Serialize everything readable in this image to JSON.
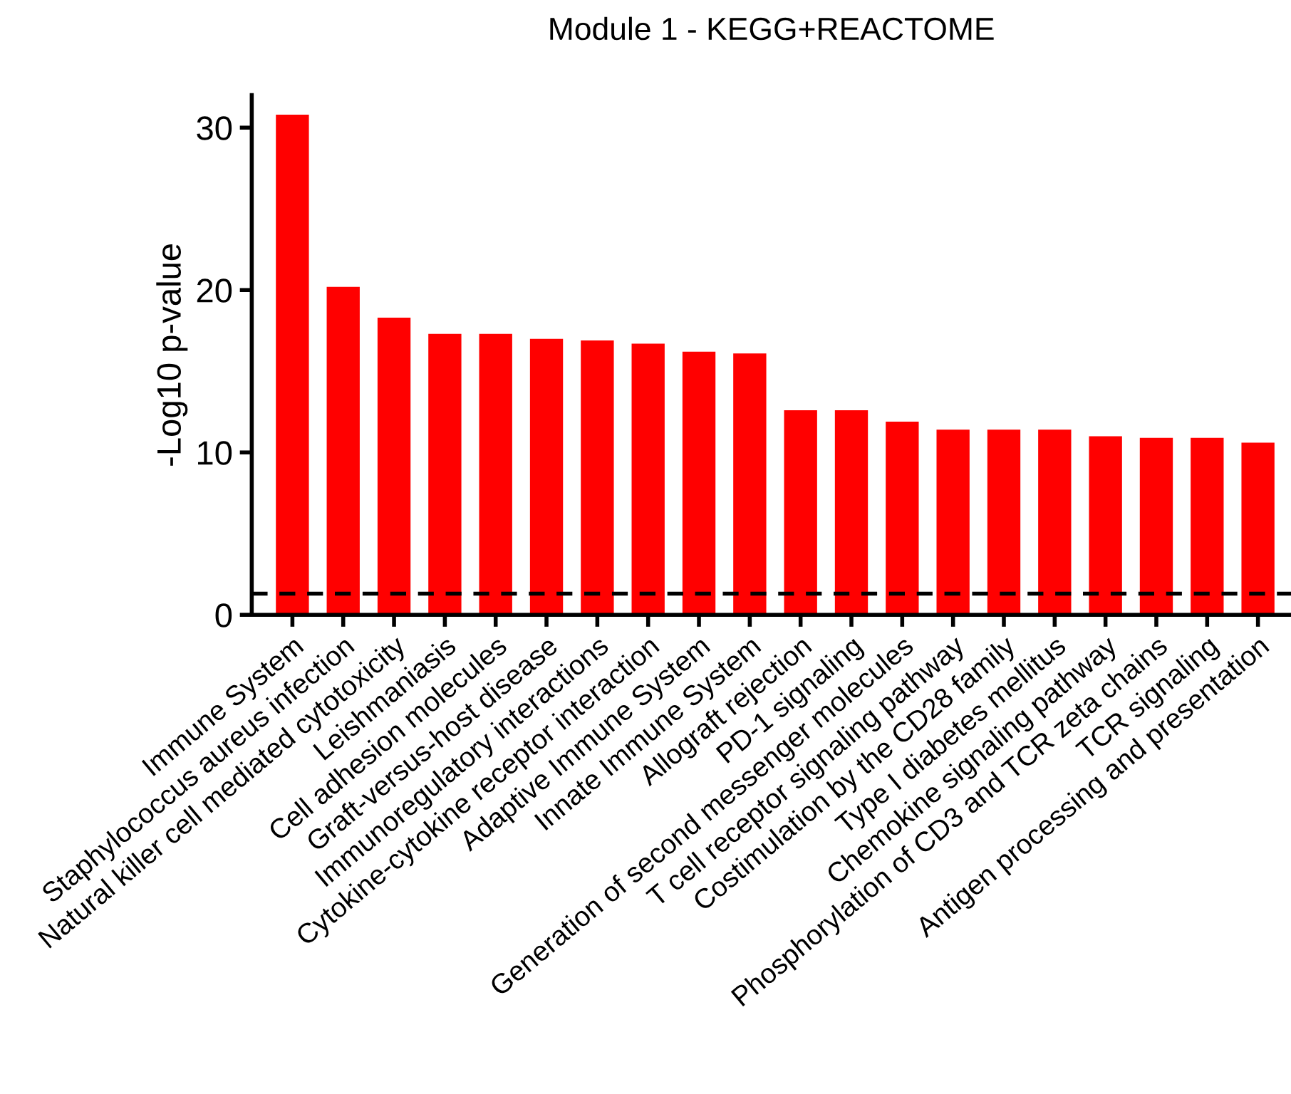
{
  "chart_data": {
    "type": "bar",
    "title": "Module 1 - KEGG+REACTOME",
    "ylabel": "-Log10 p-value",
    "categories": [
      "Immune System",
      "Staphylococcus aureus infection",
      "Natural killer cell mediated cytotoxicity",
      "Leishmaniasis",
      "Cell adhesion molecules",
      "Graft-versus-host disease",
      "Immunoregulatory interactions",
      "Cytokine-cytokine receptor interaction",
      "Adaptive Immune System",
      "Innate Immune System",
      "Allograft rejection",
      "PD-1 signaling",
      "Generation of second messenger molecules",
      "T cell receptor signaling pathway",
      "Costimulation by the CD28 family",
      "Type I diabetes mellitus",
      "Chemokine signaling pathway",
      "Phosphorylation of CD3 and TCR zeta chains",
      "TCR signaling",
      "Antigen processing and presentation"
    ],
    "values": [
      30.8,
      20.2,
      18.3,
      17.3,
      17.3,
      17.0,
      16.9,
      16.7,
      16.2,
      16.1,
      12.6,
      12.6,
      11.9,
      11.4,
      11.4,
      11.4,
      11.0,
      10.9,
      10.9,
      10.6
    ],
    "color": "#ff0000",
    "ylim": [
      0,
      32
    ],
    "yticks": [
      0,
      10,
      20,
      30
    ],
    "grid": false,
    "ref_lines": [
      {
        "axis": "y",
        "value": 1.3,
        "color": "#000000",
        "line_style": "dashed"
      }
    ]
  }
}
